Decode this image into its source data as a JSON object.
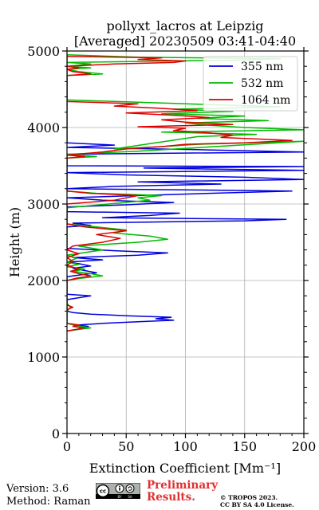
{
  "chart_data": {
    "type": "line",
    "title": "pollyxt_lacros at Leipzig",
    "subtitle": "[Averaged] 20230509 03:41-04:40",
    "xlabel": "Extinction Coefficient [Mm⁻¹]",
    "ylabel": "Height (m)",
    "xlim": [
      0,
      200
    ],
    "ylim": [
      0,
      5000
    ],
    "x_ticks": [
      0,
      50,
      100,
      150,
      200
    ],
    "y_ticks": [
      0,
      1000,
      2000,
      3000,
      4000,
      5000
    ],
    "grid": true,
    "legend_position": "top-right",
    "series": [
      {
        "name": "355 nm",
        "color": "#0000dd",
        "points": [
          [
            0,
            1340
          ],
          [
            8,
            1360
          ],
          [
            15,
            1380
          ],
          [
            18,
            1400
          ],
          [
            10,
            1420
          ],
          [
            30,
            1440
          ],
          [
            60,
            1460
          ],
          [
            90,
            1480
          ],
          [
            75,
            1500
          ],
          [
            88,
            1520
          ],
          [
            50,
            1540
          ],
          [
            20,
            1560
          ],
          [
            5,
            1580
          ],
          [
            0,
            1600
          ],
          [
            0,
            1650
          ],
          [
            0,
            1750
          ],
          [
            20,
            1800
          ],
          [
            0,
            1820
          ],
          [
            0,
            2050
          ],
          [
            10,
            2070
          ],
          [
            25,
            2100
          ],
          [
            15,
            2130
          ],
          [
            5,
            2160
          ],
          [
            20,
            2190
          ],
          [
            10,
            2220
          ],
          [
            0,
            2240
          ],
          [
            30,
            2270
          ],
          [
            5,
            2300
          ],
          [
            60,
            2330
          ],
          [
            85,
            2360
          ],
          [
            40,
            2390
          ],
          [
            0,
            2420
          ],
          [
            0,
            2700
          ],
          [
            20,
            2720
          ],
          [
            5,
            2750
          ],
          [
            150,
            2780
          ],
          [
            185,
            2800
          ],
          [
            30,
            2820
          ],
          [
            70,
            2850
          ],
          [
            95,
            2880
          ],
          [
            0,
            2900
          ],
          [
            0,
            2960
          ],
          [
            50,
            2990
          ],
          [
            90,
            3020
          ],
          [
            30,
            3050
          ],
          [
            0,
            3080
          ],
          [
            60,
            3110
          ],
          [
            120,
            3140
          ],
          [
            190,
            3170
          ],
          [
            0,
            3200
          ],
          [
            40,
            3230
          ],
          [
            130,
            3260
          ],
          [
            60,
            3290
          ],
          [
            200,
            3320
          ],
          [
            150,
            3350
          ],
          [
            50,
            3380
          ],
          [
            0,
            3410
          ],
          [
            200,
            3440
          ],
          [
            65,
            3470
          ],
          [
            200,
            3490
          ],
          [
            0,
            3500
          ],
          [
            0,
            3650
          ],
          [
            200,
            3680
          ],
          [
            110,
            3710
          ],
          [
            0,
            3740
          ],
          [
            40,
            3770
          ],
          [
            0,
            3800
          ],
          [
            0,
            4950
          ]
        ]
      },
      {
        "name": "532 nm",
        "color": "#00bb00",
        "points": [
          [
            0,
            1340
          ],
          [
            10,
            1360
          ],
          [
            20,
            1380
          ],
          [
            12,
            1400
          ],
          [
            5,
            1420
          ],
          [
            0,
            1440
          ],
          [
            0,
            1600
          ],
          [
            3,
            1650
          ],
          [
            0,
            1700
          ],
          [
            0,
            2000
          ],
          [
            12,
            2030
          ],
          [
            30,
            2060
          ],
          [
            20,
            2090
          ],
          [
            5,
            2120
          ],
          [
            15,
            2150
          ],
          [
            0,
            2180
          ],
          [
            10,
            2210
          ],
          [
            0,
            2240
          ],
          [
            8,
            2290
          ],
          [
            0,
            2330
          ],
          [
            30,
            2400
          ],
          [
            10,
            2450
          ],
          [
            60,
            2500
          ],
          [
            85,
            2540
          ],
          [
            70,
            2580
          ],
          [
            40,
            2620
          ],
          [
            50,
            2660
          ],
          [
            25,
            2700
          ],
          [
            0,
            2740
          ],
          [
            0,
            2950
          ],
          [
            35,
            3000
          ],
          [
            70,
            3050
          ],
          [
            60,
            3080
          ],
          [
            80,
            3110
          ],
          [
            25,
            3140
          ],
          [
            0,
            3170
          ],
          [
            0,
            3600
          ],
          [
            25,
            3620
          ],
          [
            0,
            3650
          ],
          [
            60,
            3690
          ],
          [
            200,
            3820
          ],
          [
            110,
            3780
          ],
          [
            80,
            3750
          ],
          [
            40,
            3720
          ],
          [
            110,
            3880
          ],
          [
            160,
            3910
          ],
          [
            80,
            3940
          ],
          [
            200,
            3970
          ],
          [
            150,
            4000
          ],
          [
            120,
            4030
          ],
          [
            100,
            4060
          ],
          [
            170,
            4090
          ],
          [
            110,
            4120
          ],
          [
            150,
            4150
          ],
          [
            80,
            4180
          ],
          [
            140,
            4210
          ],
          [
            90,
            4240
          ],
          [
            180,
            4270
          ],
          [
            120,
            4300
          ],
          [
            60,
            4330
          ],
          [
            0,
            4360
          ],
          [
            0,
            4680
          ],
          [
            30,
            4700
          ],
          [
            10,
            4730
          ],
          [
            0,
            4760
          ],
          [
            20,
            4780
          ],
          [
            0,
            4800
          ],
          [
            20,
            4830
          ],
          [
            0,
            4850
          ],
          [
            140,
            4880
          ],
          [
            180,
            4900
          ],
          [
            60,
            4920
          ],
          [
            0,
            4950
          ]
        ]
      },
      {
        "name": "1064 nm",
        "color": "#dd0000",
        "points": [
          [
            0,
            1340
          ],
          [
            8,
            1360
          ],
          [
            14,
            1380
          ],
          [
            5,
            1400
          ],
          [
            10,
            1420
          ],
          [
            0,
            1440
          ],
          [
            0,
            1620
          ],
          [
            5,
            1650
          ],
          [
            0,
            1680
          ],
          [
            0,
            2000
          ],
          [
            8,
            2030
          ],
          [
            20,
            2060
          ],
          [
            10,
            2090
          ],
          [
            3,
            2120
          ],
          [
            10,
            2150
          ],
          [
            0,
            2200
          ],
          [
            5,
            2250
          ],
          [
            0,
            2300
          ],
          [
            10,
            2350
          ],
          [
            0,
            2400
          ],
          [
            5,
            2450
          ],
          [
            30,
            2500
          ],
          [
            45,
            2550
          ],
          [
            25,
            2600
          ],
          [
            50,
            2650
          ],
          [
            15,
            2700
          ],
          [
            0,
            2740
          ],
          [
            0,
            3000
          ],
          [
            40,
            3050
          ],
          [
            50,
            3080
          ],
          [
            60,
            3110
          ],
          [
            20,
            3140
          ],
          [
            0,
            3170
          ],
          [
            0,
            3600
          ],
          [
            15,
            3620
          ],
          [
            0,
            3640
          ],
          [
            30,
            3680
          ],
          [
            50,
            3720
          ],
          [
            80,
            3750
          ],
          [
            100,
            3780
          ],
          [
            150,
            3800
          ],
          [
            190,
            3830
          ],
          [
            130,
            3870
          ],
          [
            140,
            3900
          ],
          [
            120,
            3930
          ],
          [
            90,
            3960
          ],
          [
            100,
            3990
          ],
          [
            60,
            4010
          ],
          [
            140,
            4040
          ],
          [
            100,
            4070
          ],
          [
            80,
            4100
          ],
          [
            120,
            4130
          ],
          [
            90,
            4160
          ],
          [
            50,
            4190
          ],
          [
            110,
            4220
          ],
          [
            80,
            4250
          ],
          [
            40,
            4280
          ],
          [
            60,
            4310
          ],
          [
            0,
            4340
          ],
          [
            0,
            4680
          ],
          [
            20,
            4700
          ],
          [
            5,
            4730
          ],
          [
            0,
            4760
          ],
          [
            10,
            4780
          ],
          [
            0,
            4800
          ],
          [
            40,
            4830
          ],
          [
            90,
            4850
          ],
          [
            100,
            4870
          ],
          [
            60,
            4890
          ],
          [
            80,
            4910
          ],
          [
            0,
            4930
          ],
          [
            0,
            4950
          ]
        ]
      }
    ]
  },
  "footer": {
    "version": "Version: 3.6",
    "method": "Method: Raman",
    "preliminary_line1": "Preliminary",
    "preliminary_line2": "Results.",
    "copyright_line1": "© TROPOS 2023.",
    "copyright_line2": "CC BY SA 4.0 License.",
    "license_logo": "cc-by-sa-logo"
  }
}
